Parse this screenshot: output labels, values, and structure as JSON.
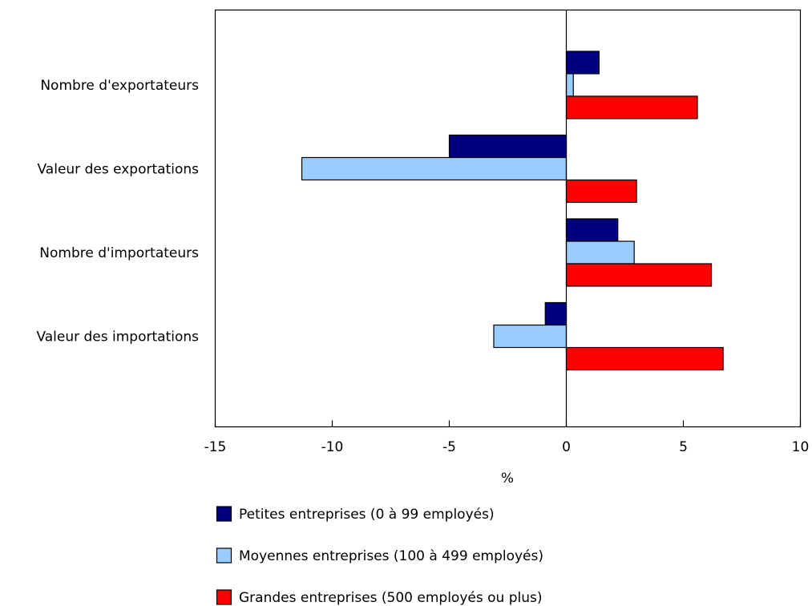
{
  "chart_data": {
    "type": "bar",
    "orientation": "horizontal",
    "title": "",
    "xlabel": "%",
    "ylabel": "",
    "xlim": [
      -15,
      10
    ],
    "x_ticks": [
      -15,
      -10,
      -5,
      0,
      5,
      10
    ],
    "x_tick_labels": [
      "-15",
      "-10",
      "-5",
      "0",
      "5",
      "10"
    ],
    "grid": false,
    "legend_position": "bottom",
    "categories": [
      "Nombre d'exportateurs",
      "Valeur des exportations",
      "Nombre d'importateurs",
      "Valeur des importations"
    ],
    "series": [
      {
        "name": "Petites entreprises (0 à 99 employés)",
        "color": "#000080",
        "values": [
          1.4,
          -5.0,
          2.2,
          -0.9
        ]
      },
      {
        "name": "Moyennes entreprises (100 à 499 employés)",
        "color": "#99ccff",
        "values": [
          0.3,
          -11.3,
          2.9,
          -3.1
        ]
      },
      {
        "name": "Grandes entreprises (500 employés ou plus)",
        "color": "#ff0000",
        "values": [
          5.6,
          3.0,
          6.2,
          6.7
        ]
      }
    ]
  }
}
